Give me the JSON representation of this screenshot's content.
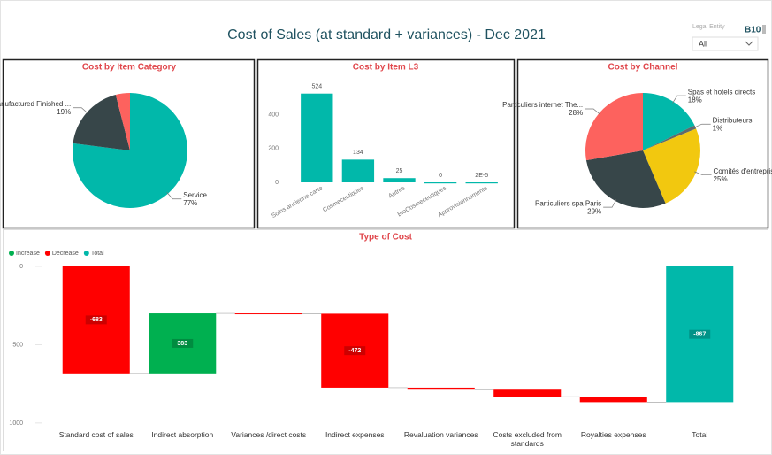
{
  "header": {
    "title": "Cost of Sales (at standard + variances) - Dec 2021",
    "slicer_label": "Legal Entity",
    "slicer_value": "All",
    "badge": "B10"
  },
  "chart_data": [
    {
      "type": "pie",
      "title": "Cost by Item Category",
      "categories": [
        "Service",
        "Manufactured Finished ...",
        null
      ],
      "values": [
        77,
        19,
        4
      ],
      "value_labels": [
        "77%",
        "19%",
        null
      ],
      "colors": [
        "#01B8AA",
        "#374649",
        "#FD625E"
      ]
    },
    {
      "type": "bar",
      "title": "Cost by Item L3",
      "categories": [
        "Soins ancienne carte",
        "Cosmeceutiques",
        "Autres",
        "BioCosmeceutiques",
        "Approvisionnements"
      ],
      "values": [
        524,
        134,
        25,
        0,
        2e-05
      ],
      "value_labels": [
        "524",
        "134",
        "25",
        "0",
        "2E-5"
      ],
      "color": "#01B8AA",
      "ylim": [
        0,
        580
      ],
      "yticks": [
        0,
        200,
        400
      ],
      "grid": false
    },
    {
      "type": "pie",
      "title": "Cost by Channel",
      "categories": [
        "Spas et hotels directs",
        "Distributeurs",
        "Comités d'entrepris...",
        "Particuliers spa Paris",
        "Particuliers internet The..."
      ],
      "values": [
        18,
        1,
        25,
        29,
        28
      ],
      "value_labels": [
        "18%",
        "1%",
        "25%",
        "29%",
        "28%"
      ],
      "colors": [
        "#01B8AA",
        "#5F6B6D",
        "#F2C80F",
        "#374649",
        "#FD625E"
      ]
    },
    {
      "type": "waterfall",
      "title": "Type of Cost",
      "legend": [
        {
          "name": "Increase",
          "color": "#00B050"
        },
        {
          "name": "Decrease",
          "color": "#FF0000"
        },
        {
          "name": "Total",
          "color": "#01B8AA"
        }
      ],
      "categories": [
        "Standard cost of sales",
        "Indirect absorption",
        "Variances /direct costs",
        "Indirect expenses",
        "Revaluation variances",
        "Costs excluded from standards",
        "Royalties expenses",
        "Total"
      ],
      "values": [
        -683,
        383,
        -2,
        -472,
        -13,
        -45,
        -35,
        -867
      ],
      "value_labels": [
        "-683",
        "383",
        null,
        "-472",
        null,
        null,
        null,
        "-867"
      ],
      "ylim": [
        28,
        -1040
      ],
      "yticks": [
        0,
        {
          "value": -500,
          "label": "500"
        },
        {
          "value": -1000,
          "label": "1000"
        }
      ]
    }
  ]
}
